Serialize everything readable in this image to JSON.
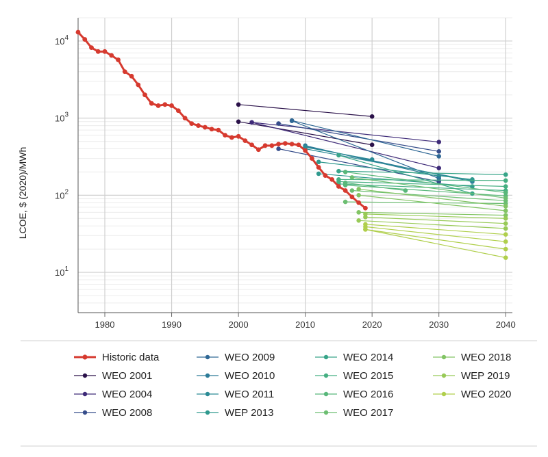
{
  "chart_data": {
    "type": "line",
    "title": "",
    "xlabel": "",
    "ylabel": "LCOE, $ (2020)/MWh",
    "yscale": "log",
    "xlim": [
      1976,
      2041
    ],
    "ylim": [
      3,
      20000
    ],
    "x_ticks": [
      1980,
      1990,
      2000,
      2010,
      2020,
      2030,
      2040
    ],
    "y_ticks": [
      {
        "value": 10,
        "base": "10",
        "exp": "1"
      },
      {
        "value": 100,
        "base": "10",
        "exp": "2"
      },
      {
        "value": 1000,
        "base": "10",
        "exp": "3"
      },
      {
        "value": 10000,
        "base": "10",
        "exp": "4"
      }
    ],
    "historic": {
      "name": "Historic data",
      "color": "#d63a2f",
      "x": [
        1976,
        1977,
        1978,
        1979,
        1980,
        1981,
        1982,
        1983,
        1984,
        1985,
        1986,
        1987,
        1988,
        1989,
        1990,
        1991,
        1992,
        1993,
        1994,
        1995,
        1996,
        1997,
        1998,
        1999,
        2000,
        2001,
        2002,
        2003,
        2004,
        2005,
        2006,
        2007,
        2008,
        2009,
        2010,
        2011,
        2012,
        2013,
        2014,
        2015,
        2016,
        2017,
        2018,
        2019
      ],
      "y": [
        13000,
        10500,
        8200,
        7300,
        7300,
        6500,
        5700,
        4000,
        3500,
        2700,
        2000,
        1550,
        1450,
        1500,
        1450,
        1250,
        1000,
        850,
        800,
        760,
        720,
        700,
        600,
        560,
        580,
        510,
        450,
        390,
        440,
        440,
        460,
        470,
        460,
        450,
        380,
        300,
        230,
        180,
        160,
        130,
        115,
        95,
        80,
        68
      ]
    },
    "series": [
      {
        "name": "WEO 2001",
        "color": "#2a1149",
        "segments": [
          {
            "x": [
              2000,
              2020
            ],
            "y": [
              1500,
              1050
            ]
          },
          {
            "x": [
              2000,
              2020
            ],
            "y": [
              900,
              450
            ]
          }
        ]
      },
      {
        "name": "WEO 2004",
        "color": "#3e2a78",
        "segments": [
          {
            "x": [
              2002,
              2030
            ],
            "y": [
              880,
              490
            ]
          },
          {
            "x": [
              2002,
              2030
            ],
            "y": [
              880,
              225
            ]
          }
        ]
      },
      {
        "name": "WEO 2008",
        "color": "#354c8a",
        "segments": [
          {
            "x": [
              2006,
              2030
            ],
            "y": [
              850,
              370
            ]
          },
          {
            "x": [
              2006,
              2030
            ],
            "y": [
              400,
              150
            ]
          }
        ]
      },
      {
        "name": "WEO 2009",
        "color": "#2f6895",
        "segments": [
          {
            "x": [
              2008,
              2030
            ],
            "y": [
              930,
              320
            ]
          },
          {
            "x": [
              2008,
              2030
            ],
            "y": [
              920,
              165
            ]
          }
        ]
      },
      {
        "name": "WEO 2010",
        "color": "#2c7b98",
        "segments": [
          {
            "x": [
              2010,
              2030
            ],
            "y": [
              440,
              175
            ]
          },
          {
            "x": [
              2010,
              2035
            ],
            "y": [
              430,
              150
            ]
          }
        ]
      },
      {
        "name": "WEO 2011",
        "color": "#2b8b95",
        "segments": [
          {
            "x": [
              2010,
              2020
            ],
            "y": [
              420,
              290
            ]
          },
          {
            "x": [
              2010,
              2035
            ],
            "y": [
              400,
              155
            ]
          }
        ]
      },
      {
        "name": "WEP 2013",
        "color": "#2f998e",
        "segments": [
          {
            "x": [
              2012,
              2035
            ],
            "y": [
              270,
              160
            ]
          },
          {
            "x": [
              2012,
              2035
            ],
            "y": [
              190,
              130
            ]
          }
        ]
      },
      {
        "name": "WEO 2014",
        "color": "#38a589",
        "segments": [
          {
            "x": [
              2015,
              2035
            ],
            "y": [
              330,
              105
            ]
          },
          {
            "x": [
              2015,
              2040
            ],
            "y": [
              205,
              185
            ]
          }
        ]
      },
      {
        "name": "WEO 2015",
        "color": "#45af82",
        "segments": [
          {
            "x": [
              2015,
              2040
            ],
            "y": [
              160,
              155
            ]
          },
          {
            "x": [
              2015,
              2040
            ],
            "y": [
              150,
              130
            ]
          },
          {
            "x": [
              2015,
              2040
            ],
            "y": [
              140,
              115
            ]
          }
        ]
      },
      {
        "name": "WEO 2016",
        "color": "#58b77a",
        "segments": [
          {
            "x": [
              2016,
              2040
            ],
            "y": [
              200,
              108
            ]
          },
          {
            "x": [
              2016,
              2025
            ],
            "y": [
              145,
              115
            ]
          },
          {
            "x": [
              2016,
              2040
            ],
            "y": [
              135,
              98
            ]
          }
        ]
      },
      {
        "name": "WEO 2017",
        "color": "#6cbe71",
        "segments": [
          {
            "x": [
              2017,
              2040
            ],
            "y": [
              170,
              92
            ]
          },
          {
            "x": [
              2017,
              2040
            ],
            "y": [
              115,
              85
            ]
          },
          {
            "x": [
              2016,
              2040
            ],
            "y": [
              82,
              78
            ]
          }
        ]
      },
      {
        "name": "WEO 2018",
        "color": "#82c464",
        "segments": [
          {
            "x": [
              2018,
              2040
            ],
            "y": [
              120,
              72
            ]
          },
          {
            "x": [
              2018,
              2040
            ],
            "y": [
              100,
              63
            ]
          },
          {
            "x": [
              2018,
              2040
            ],
            "y": [
              60,
              55
            ]
          }
        ]
      },
      {
        "name": "WEP 2019",
        "color": "#98ca57",
        "segments": [
          {
            "x": [
              2019,
              2040
            ],
            "y": [
              57,
              50
            ]
          },
          {
            "x": [
              2019,
              2040
            ],
            "y": [
              52,
              43
            ]
          },
          {
            "x": [
              2018,
              2040
            ],
            "y": [
              47,
              37
            ]
          }
        ]
      },
      {
        "name": "WEO 2020",
        "color": "#b0cf4c",
        "segments": [
          {
            "x": [
              2019,
              2040
            ],
            "y": [
              42,
              31
            ]
          },
          {
            "x": [
              2019,
              2040
            ],
            "y": [
              39,
              25
            ]
          },
          {
            "x": [
              2019,
              2040
            ],
            "y": [
              36,
              20
            ]
          },
          {
            "x": [
              2019,
              2040
            ],
            "y": [
              36,
              15.5
            ]
          }
        ]
      }
    ],
    "legend_position": "bottom"
  }
}
